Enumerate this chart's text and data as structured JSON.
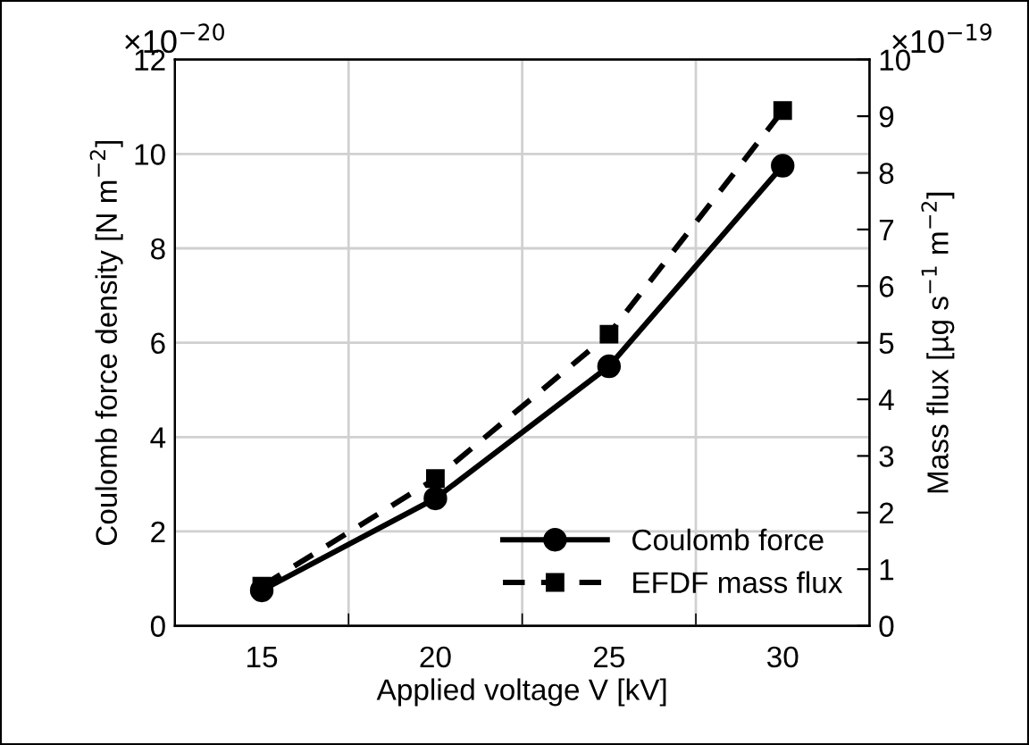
{
  "chart_data": {
    "type": "line",
    "xlabel": "Applied voltage V [kV]",
    "ylabel": "Coulomb force density [N m$^{−2}$]",
    "y2label": "Mass flux [µg s$^{−1}$ m$^{−2}$]",
    "categories": [
      "15",
      "20",
      "25",
      "30"
    ],
    "series": [
      {
        "name": "Coulomb force",
        "color": "#000000",
        "values": [
          0.75,
          2.7,
          5.5,
          9.75
        ],
        "marker": "circle",
        "line_style": "solid"
      },
      {
        "name": "EFDF mass flux",
        "color": "#000000",
        "values": [
          0.7,
          2.6,
          5.15,
          9.1
        ],
        "marker": "square",
        "line_style": "dashed",
        "axis": "y2"
      }
    ],
    "ylim": [
      0,
      12
    ],
    "yticks": [
      0,
      2,
      4,
      6,
      8,
      10,
      12
    ],
    "y2lim": [
      0,
      10
    ],
    "y2ticks": [
      0,
      1,
      2,
      3,
      4,
      5,
      6,
      7,
      8,
      9,
      10
    ],
    "annotations": [
      "×10$^{−20}$",
      "×10$^{−19}$"
    ],
    "grid": true,
    "legend": "bottom right"
  }
}
